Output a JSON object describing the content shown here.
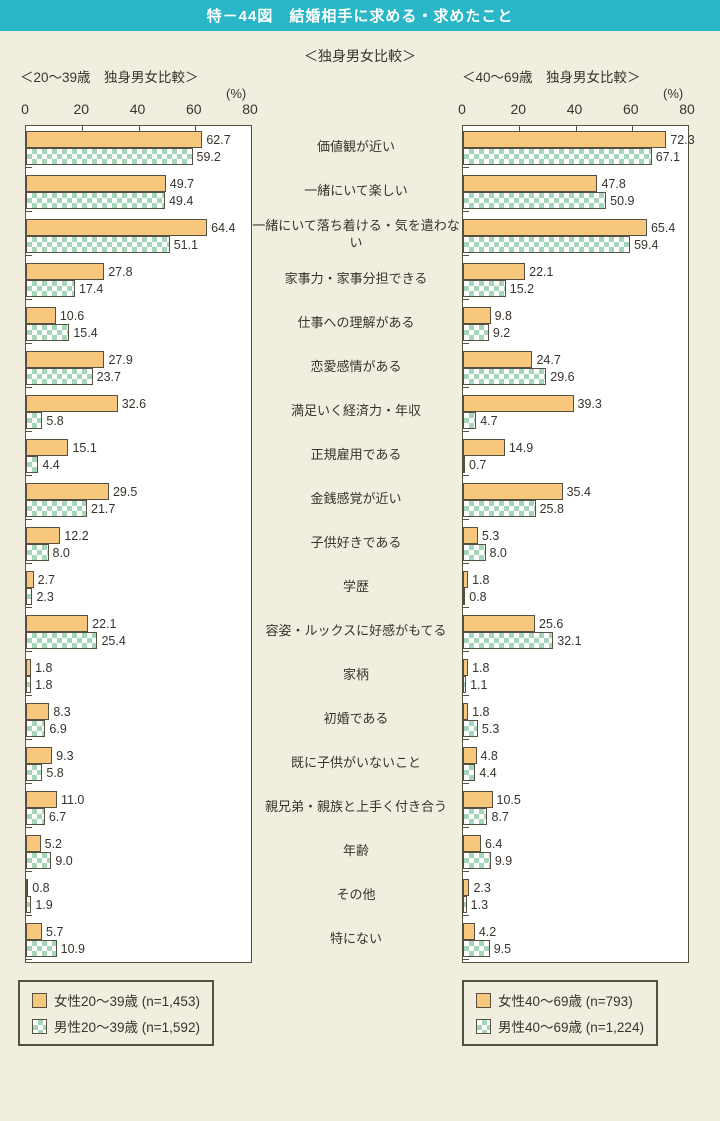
{
  "header": {
    "title": "特－44図　結婚相手に求める・求めたこと",
    "subtitle": "＜独身男女比較＞"
  },
  "colors": {
    "title_bar": "#29B6C6",
    "background": "#F2EEDF",
    "female_bar": "#F8C77E",
    "male_bar_check": "#A5D6B9",
    "bar_border": "#55503F"
  },
  "chart_data": [
    {
      "type": "bar",
      "orientation": "horizontal",
      "title": "＜20〜39歳　独身男女比較＞",
      "unit_label": "(%)",
      "xlim": [
        0,
        80
      ],
      "ticks": [
        0,
        20,
        40,
        60,
        80
      ],
      "grid": false,
      "categories": [
        "価値観が近い",
        "一緒にいて楽しい",
        "一緒にいて落ち着ける・気を遣わない",
        "家事力・家事分担できる",
        "仕事への理解がある",
        "恋愛感情がある",
        "満足いく経済力・年収",
        "正規雇用である",
        "金銭感覚が近い",
        "子供好きである",
        "学歴",
        "容姿・ルックスに好感がもてる",
        "家柄",
        "初婚である",
        "既に子供がいないこと",
        "親兄弟・親族と上手く付き合う",
        "年齢",
        "その他",
        "特にない"
      ],
      "series": [
        {
          "name": "女性20〜39歳 (n=1,453)",
          "values": [
            "62.7",
            "49.7",
            "64.4",
            "27.8",
            "10.6",
            "27.9",
            "32.6",
            "15.1",
            "29.5",
            "12.2",
            "2.7",
            "22.1",
            "1.8",
            "8.3",
            "9.3",
            "11.0",
            "5.2",
            "0.8",
            "5.7"
          ]
        },
        {
          "name": "男性20〜39歳 (n=1,592)",
          "values": [
            "59.2",
            "49.4",
            "51.1",
            "17.4",
            "15.4",
            "23.7",
            "5.8",
            "4.4",
            "21.7",
            "8.0",
            "2.3",
            "25.4",
            "1.8",
            "6.9",
            "5.8",
            "6.7",
            "9.0",
            "1.9",
            "10.9"
          ]
        }
      ]
    },
    {
      "type": "bar",
      "orientation": "horizontal",
      "title": "＜40〜69歳　独身男女比較＞",
      "unit_label": "(%)",
      "xlim": [
        0,
        80
      ],
      "ticks": [
        0,
        20,
        40,
        60,
        80
      ],
      "grid": false,
      "categories": [
        "価値観が近い",
        "一緒にいて楽しい",
        "一緒にいて落ち着ける・気を遣わない",
        "家事力・家事分担できる",
        "仕事への理解がある",
        "恋愛感情がある",
        "満足いく経済力・年収",
        "正規雇用である",
        "金銭感覚が近い",
        "子供好きである",
        "学歴",
        "容姿・ルックスに好感がもてる",
        "家柄",
        "初婚である",
        "既に子供がいないこと",
        "親兄弟・親族と上手く付き合う",
        "年齢",
        "その他",
        "特にない"
      ],
      "series": [
        {
          "name": "女性40〜69歳 (n=793)",
          "values": [
            "72.3",
            "47.8",
            "65.4",
            "22.1",
            "9.8",
            "24.7",
            "39.3",
            "14.9",
            "35.4",
            "5.3",
            "1.8",
            "25.6",
            "1.8",
            "1.8",
            "4.8",
            "10.5",
            "6.4",
            "2.3",
            "4.2"
          ]
        },
        {
          "name": "男性40〜69歳 (n=1,224)",
          "values": [
            "67.1",
            "50.9",
            "59.4",
            "15.2",
            "9.2",
            "29.6",
            "4.7",
            "0.7",
            "25.8",
            "8.0",
            "0.8",
            "32.1",
            "1.1",
            "5.3",
            "4.4",
            "8.7",
            "9.9",
            "1.3",
            "9.5"
          ]
        }
      ]
    }
  ],
  "legends": [
    {
      "items": [
        {
          "swatch": "female",
          "label": "女性20〜39歳 (n=1,453)"
        },
        {
          "swatch": "male",
          "label": "男性20〜39歳 (n=1,592)"
        }
      ]
    },
    {
      "items": [
        {
          "swatch": "female",
          "label": "女性40〜69歳 (n=793)"
        },
        {
          "swatch": "male",
          "label": "男性40〜69歳 (n=1,224)"
        }
      ]
    }
  ]
}
